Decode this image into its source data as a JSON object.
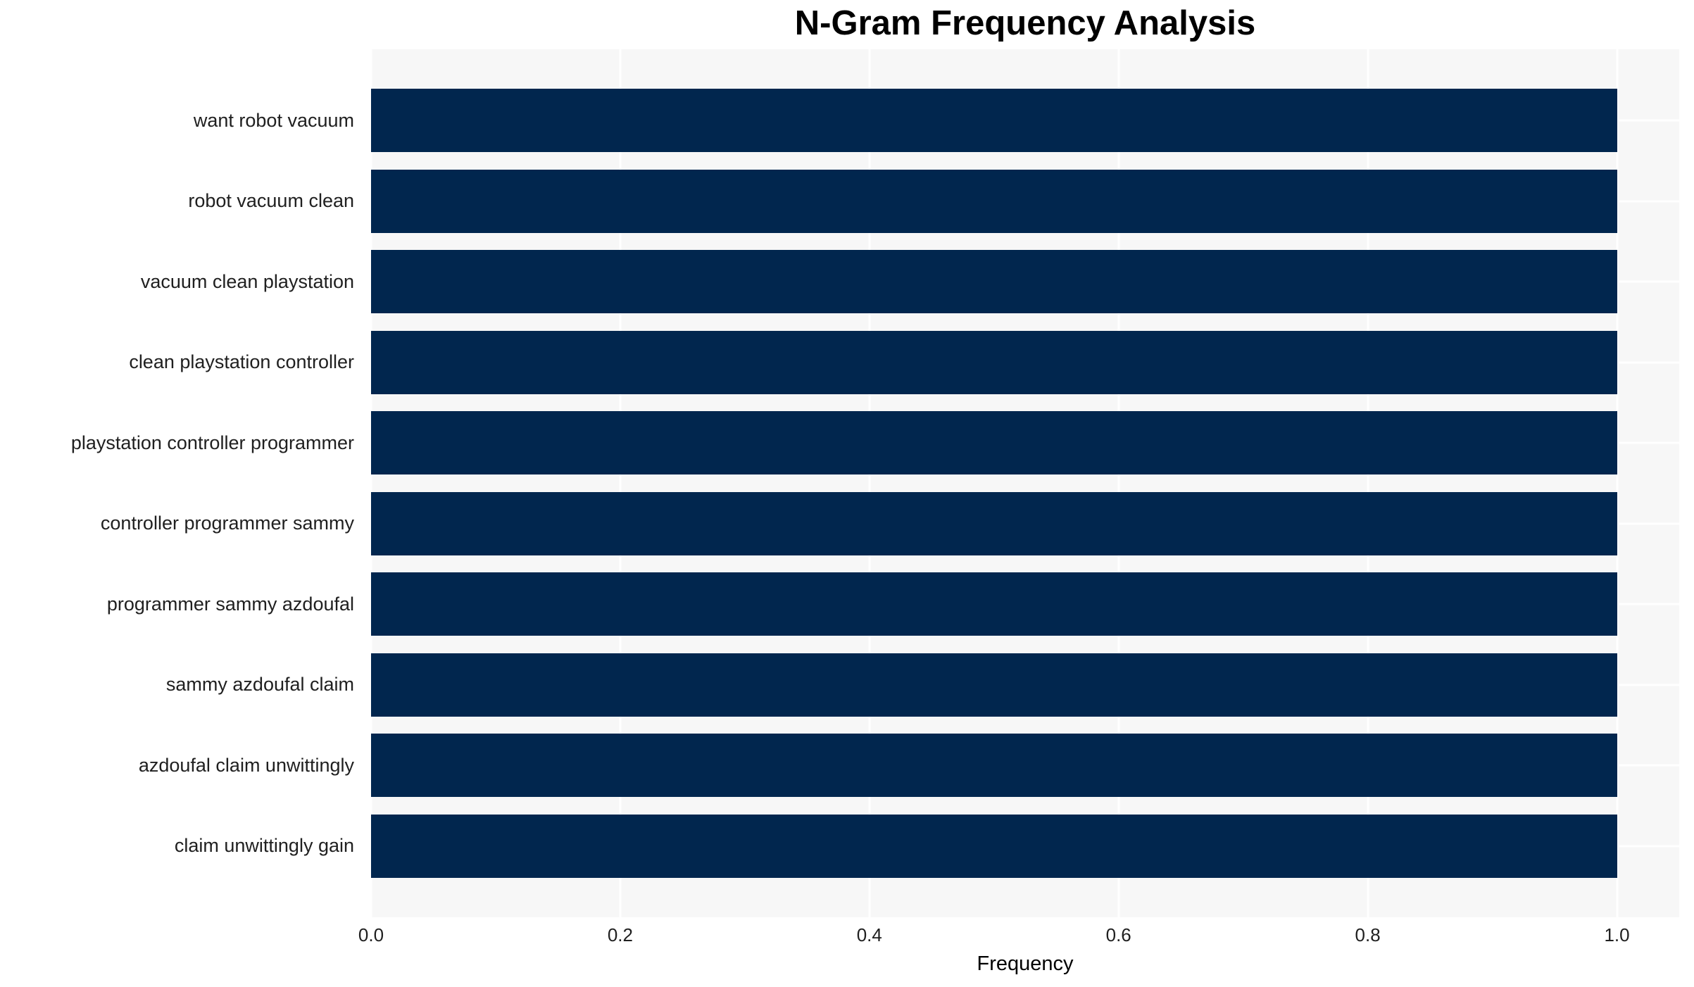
{
  "chart_data": {
    "type": "bar",
    "orientation": "horizontal",
    "title": "N-Gram Frequency Analysis",
    "xlabel": "Frequency",
    "ylabel": "",
    "categories": [
      "want robot vacuum",
      "robot vacuum clean",
      "vacuum clean playstation",
      "clean playstation controller",
      "playstation controller programmer",
      "controller programmer sammy",
      "programmer sammy azdoufal",
      "sammy azdoufal claim",
      "azdoufal claim unwittingly",
      "claim unwittingly gain"
    ],
    "values": [
      1.0,
      1.0,
      1.0,
      1.0,
      1.0,
      1.0,
      1.0,
      1.0,
      1.0,
      1.0
    ],
    "xlim": [
      0,
      1.05
    ],
    "xticks": [
      "0.0",
      "0.2",
      "0.4",
      "0.6",
      "0.8",
      "1.0"
    ],
    "xtick_values": [
      0,
      0.2,
      0.4,
      0.6,
      0.8,
      1.0
    ],
    "grid": true,
    "legend": null
  },
  "colors": {
    "bar": "#01264e",
    "plot_background": "#f7f7f7",
    "gridline": "#ffffff",
    "title": "#000000",
    "tick_label": "#202020"
  }
}
